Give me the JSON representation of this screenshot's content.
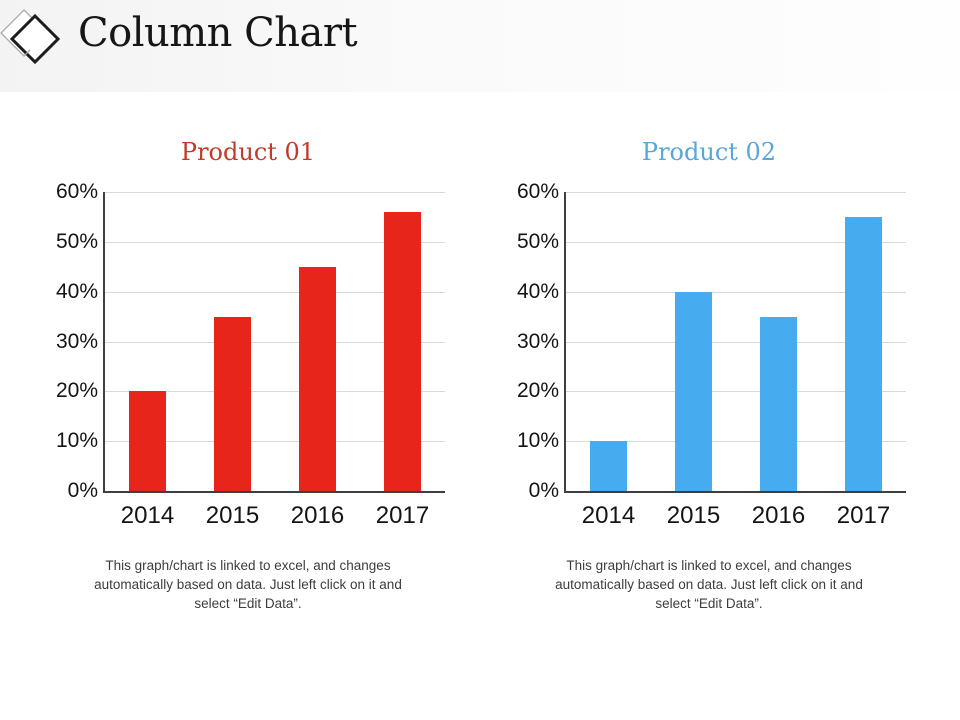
{
  "header": {
    "title": "Column Chart",
    "icon": "interlocked-diamonds"
  },
  "chart_data": [
    {
      "type": "bar",
      "title": "Product 01",
      "title_color": "#c23a2a",
      "bar_color": "#e8251b",
      "categories": [
        "2014",
        "2015",
        "2016",
        "2017"
      ],
      "values": [
        20,
        35,
        45,
        56
      ],
      "unit": "%",
      "xlabel": "",
      "ylabel": "",
      "ylim": [
        0,
        60
      ],
      "ytick_step": 10,
      "ytick_labels": [
        "0%",
        "10%",
        "20%",
        "30%",
        "40%",
        "50%",
        "60%"
      ],
      "grid": true,
      "legend": false,
      "footer_lines": [
        "This graph/chart is linked to excel, and changes",
        "automatically based on data. Just left click on it and",
        "select “Edit Data”."
      ]
    },
    {
      "type": "bar",
      "title": "Product 02",
      "title_color": "#58a7d9",
      "bar_color": "#47abf0",
      "categories": [
        "2014",
        "2015",
        "2016",
        "2017"
      ],
      "values": [
        10,
        40,
        35,
        55
      ],
      "unit": "%",
      "xlabel": "",
      "ylabel": "",
      "ylim": [
        0,
        60
      ],
      "ytick_step": 10,
      "ytick_labels": [
        "0%",
        "10%",
        "20%",
        "30%",
        "40%",
        "50%",
        "60%"
      ],
      "grid": true,
      "legend": false,
      "footer_lines": [
        "This graph/chart is linked to excel, and changes",
        "automatically based on data. Just left click on it and",
        "select “Edit Data”."
      ]
    }
  ]
}
